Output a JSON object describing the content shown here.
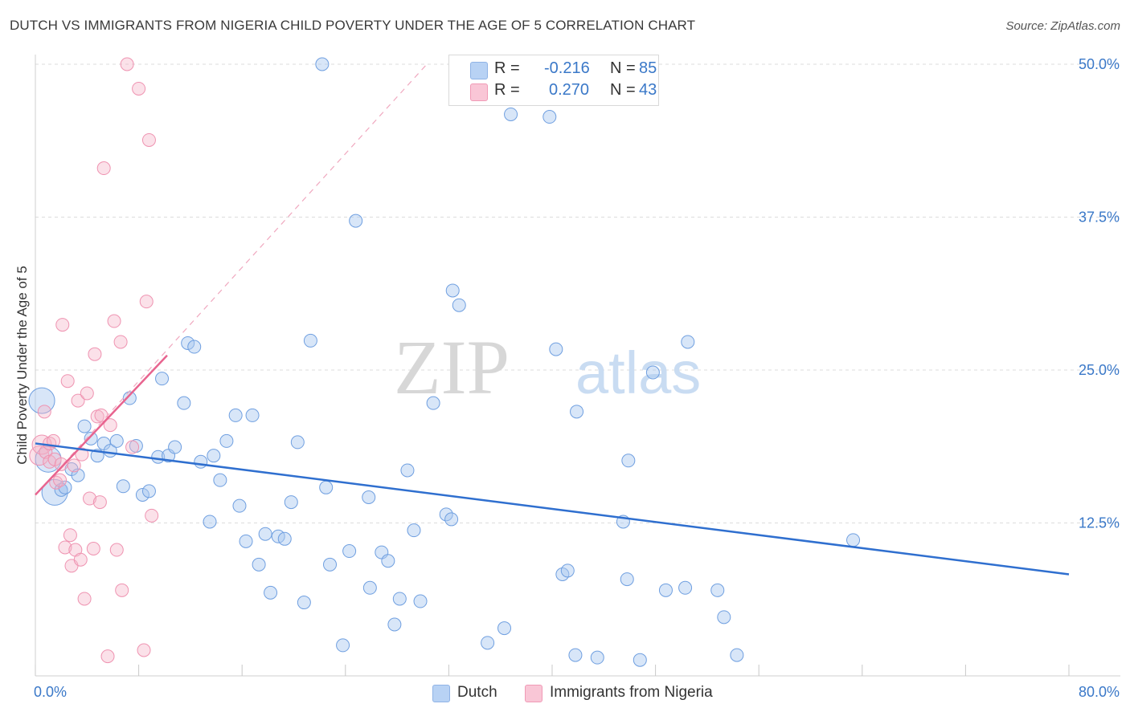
{
  "title": "DUTCH VS IMMIGRANTS FROM NIGERIA CHILD POVERTY UNDER THE AGE OF 5 CORRELATION CHART",
  "source": "Source: ZipAtlas.com",
  "watermark": {
    "zip": "ZIP",
    "atlas": "atlas"
  },
  "legend": {
    "series1": {
      "r_label": "R =",
      "r_value": "-0.216",
      "n_label": "N =",
      "n_value": "85"
    },
    "series2": {
      "r_label": "R =",
      "r_value": "0.270",
      "n_label": "N =",
      "n_value": "43"
    }
  },
  "bottom_legend": {
    "series1": "Dutch",
    "series2": "Immigrants from Nigeria"
  },
  "chart_data": {
    "type": "scatter",
    "title": "DUTCH VS IMMIGRANTS FROM NIGERIA CHILD POVERTY UNDER THE AGE OF 5 CORRELATION CHART",
    "xlabel": "",
    "ylabel": "Child Poverty Under the Age of 5",
    "xlim": [
      0,
      80
    ],
    "ylim": [
      0,
      50
    ],
    "x_tick_labels": [
      "0.0%",
      "80.0%"
    ],
    "y_ticks": [
      12.5,
      25.0,
      37.5,
      50.0
    ],
    "y_tick_labels": [
      "12.5%",
      "25.0%",
      "37.5%",
      "50.0%"
    ],
    "grid": true,
    "colors": {
      "series1": "#a8c8f0",
      "series1_line": "#2f6fcf",
      "series2": "#f5b3c8",
      "series2_line": "#e8648f",
      "tick": "#3a78c8"
    },
    "series": [
      {
        "name": "Dutch",
        "r": -0.216,
        "n": 85,
        "trend": {
          "x": [
            0,
            80
          ],
          "y": [
            19.0,
            8.3
          ]
        },
        "points": [
          {
            "x": 0.5,
            "y": 22.5,
            "big": true
          },
          {
            "x": 1.0,
            "y": 17.7,
            "big": true
          },
          {
            "x": 1.5,
            "y": 15.0,
            "big": true
          },
          {
            "x": 2.0,
            "y": 15.2
          },
          {
            "x": 2.3,
            "y": 15.4
          },
          {
            "x": 2.8,
            "y": 16.9
          },
          {
            "x": 3.3,
            "y": 16.4
          },
          {
            "x": 3.8,
            "y": 20.4
          },
          {
            "x": 4.3,
            "y": 19.4
          },
          {
            "x": 4.8,
            "y": 18.0
          },
          {
            "x": 5.3,
            "y": 19.0
          },
          {
            "x": 5.8,
            "y": 18.4
          },
          {
            "x": 6.3,
            "y": 19.2
          },
          {
            "x": 6.8,
            "y": 15.5
          },
          {
            "x": 7.3,
            "y": 22.7
          },
          {
            "x": 7.8,
            "y": 18.8
          },
          {
            "x": 8.3,
            "y": 14.8
          },
          {
            "x": 8.8,
            "y": 15.1
          },
          {
            "x": 9.5,
            "y": 17.9
          },
          {
            "x": 9.8,
            "y": 24.3
          },
          {
            "x": 10.3,
            "y": 18.0
          },
          {
            "x": 10.8,
            "y": 18.7
          },
          {
            "x": 11.5,
            "y": 22.3
          },
          {
            "x": 11.8,
            "y": 27.2
          },
          {
            "x": 12.3,
            "y": 26.9
          },
          {
            "x": 12.8,
            "y": 17.5
          },
          {
            "x": 13.5,
            "y": 12.6
          },
          {
            "x": 13.8,
            "y": 18.0
          },
          {
            "x": 14.3,
            "y": 16.0
          },
          {
            "x": 14.8,
            "y": 19.2
          },
          {
            "x": 15.5,
            "y": 21.3
          },
          {
            "x": 15.8,
            "y": 13.9
          },
          {
            "x": 16.3,
            "y": 11.0
          },
          {
            "x": 16.8,
            "y": 21.3
          },
          {
            "x": 17.3,
            "y": 9.1
          },
          {
            "x": 17.8,
            "y": 11.6
          },
          {
            "x": 18.2,
            "y": 6.8
          },
          {
            "x": 18.8,
            "y": 11.4
          },
          {
            "x": 19.3,
            "y": 11.2
          },
          {
            "x": 19.8,
            "y": 14.2
          },
          {
            "x": 20.3,
            "y": 19.1
          },
          {
            "x": 20.8,
            "y": 6.0
          },
          {
            "x": 21.3,
            "y": 27.4
          },
          {
            "x": 22.2,
            "y": 50.0
          },
          {
            "x": 22.5,
            "y": 15.4
          },
          {
            "x": 22.8,
            "y": 9.1
          },
          {
            "x": 23.8,
            "y": 2.5
          },
          {
            "x": 24.3,
            "y": 10.2
          },
          {
            "x": 24.8,
            "y": 37.2
          },
          {
            "x": 25.8,
            "y": 14.6
          },
          {
            "x": 25.9,
            "y": 7.2
          },
          {
            "x": 26.8,
            "y": 10.1
          },
          {
            "x": 27.3,
            "y": 9.4
          },
          {
            "x": 27.8,
            "y": 4.2
          },
          {
            "x": 28.2,
            "y": 6.3
          },
          {
            "x": 28.8,
            "y": 16.8
          },
          {
            "x": 29.3,
            "y": 11.9
          },
          {
            "x": 29.8,
            "y": 6.1
          },
          {
            "x": 30.8,
            "y": 22.3
          },
          {
            "x": 31.8,
            "y": 13.2
          },
          {
            "x": 32.2,
            "y": 12.8
          },
          {
            "x": 32.3,
            "y": 31.5
          },
          {
            "x": 32.8,
            "y": 30.3
          },
          {
            "x": 35.0,
            "y": 2.7
          },
          {
            "x": 36.3,
            "y": 3.9
          },
          {
            "x": 36.8,
            "y": 45.9
          },
          {
            "x": 39.8,
            "y": 45.7
          },
          {
            "x": 40.3,
            "y": 26.7
          },
          {
            "x": 40.8,
            "y": 8.3
          },
          {
            "x": 41.2,
            "y": 8.6
          },
          {
            "x": 41.8,
            "y": 1.7
          },
          {
            "x": 41.9,
            "y": 21.6
          },
          {
            "x": 43.5,
            "y": 1.5
          },
          {
            "x": 45.5,
            "y": 12.6
          },
          {
            "x": 45.8,
            "y": 7.9
          },
          {
            "x": 45.9,
            "y": 17.6
          },
          {
            "x": 46.8,
            "y": 1.3
          },
          {
            "x": 47.8,
            "y": 24.8
          },
          {
            "x": 48.8,
            "y": 7.0
          },
          {
            "x": 50.3,
            "y": 7.2
          },
          {
            "x": 50.5,
            "y": 27.3
          },
          {
            "x": 52.8,
            "y": 7.0
          },
          {
            "x": 53.3,
            "y": 4.8
          },
          {
            "x": 54.3,
            "y": 1.7
          },
          {
            "x": 63.3,
            "y": 11.1
          }
        ]
      },
      {
        "name": "Immigrants from Nigeria",
        "r": 0.27,
        "n": 43,
        "trend": {
          "x": [
            0,
            10.2
          ],
          "y": [
            14.8,
            26.2
          ]
        },
        "trend_extended": {
          "x": [
            0,
            30.3
          ],
          "y": [
            14.8,
            50.0
          ]
        },
        "points": [
          {
            "x": 0.3,
            "y": 18.0,
            "big": true
          },
          {
            "x": 0.5,
            "y": 18.9,
            "big": true
          },
          {
            "x": 0.8,
            "y": 18.3
          },
          {
            "x": 1.1,
            "y": 19.0
          },
          {
            "x": 0.7,
            "y": 21.6
          },
          {
            "x": 1.1,
            "y": 17.5
          },
          {
            "x": 1.4,
            "y": 19.2
          },
          {
            "x": 1.6,
            "y": 15.8
          },
          {
            "x": 1.9,
            "y": 16.0
          },
          {
            "x": 2.1,
            "y": 28.7
          },
          {
            "x": 2.3,
            "y": 10.5
          },
          {
            "x": 2.5,
            "y": 24.1
          },
          {
            "x": 2.7,
            "y": 11.5
          },
          {
            "x": 2.8,
            "y": 9.0
          },
          {
            "x": 3.0,
            "y": 17.2
          },
          {
            "x": 3.1,
            "y": 10.3
          },
          {
            "x": 3.3,
            "y": 22.5
          },
          {
            "x": 3.5,
            "y": 9.5
          },
          {
            "x": 3.6,
            "y": 18.1
          },
          {
            "x": 3.8,
            "y": 6.3
          },
          {
            "x": 4.0,
            "y": 23.1
          },
          {
            "x": 4.2,
            "y": 14.5
          },
          {
            "x": 4.5,
            "y": 10.4
          },
          {
            "x": 4.6,
            "y": 26.3
          },
          {
            "x": 4.8,
            "y": 21.2
          },
          {
            "x": 5.0,
            "y": 14.2
          },
          {
            "x": 5.1,
            "y": 21.3
          },
          {
            "x": 5.3,
            "y": 41.5
          },
          {
            "x": 5.6,
            "y": 1.6
          },
          {
            "x": 5.8,
            "y": 20.5
          },
          {
            "x": 6.1,
            "y": 29.0
          },
          {
            "x": 6.3,
            "y": 10.3
          },
          {
            "x": 6.6,
            "y": 27.3
          },
          {
            "x": 6.7,
            "y": 7.0
          },
          {
            "x": 7.1,
            "y": 50.0
          },
          {
            "x": 7.5,
            "y": 18.7
          },
          {
            "x": 8.0,
            "y": 48.0
          },
          {
            "x": 8.4,
            "y": 2.1
          },
          {
            "x": 8.6,
            "y": 30.6
          },
          {
            "x": 8.8,
            "y": 43.8
          },
          {
            "x": 9.0,
            "y": 13.1
          },
          {
            "x": 1.5,
            "y": 17.7
          },
          {
            "x": 2.0,
            "y": 17.3
          }
        ]
      }
    ]
  }
}
